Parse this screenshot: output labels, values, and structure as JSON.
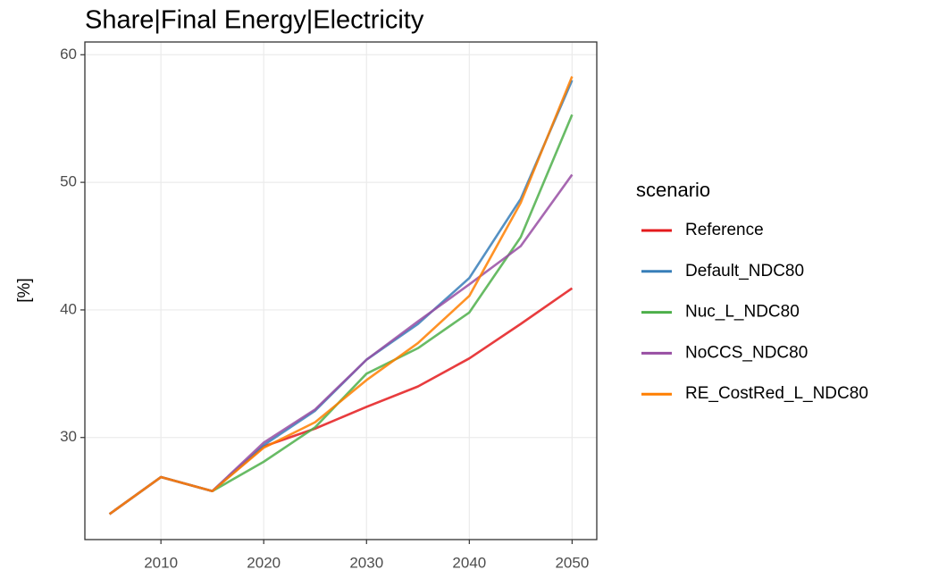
{
  "chart_data": {
    "type": "line",
    "title": "Share|Final Energy|Electricity",
    "y_label": "[%]",
    "legend_title": "scenario",
    "x": [
      2005,
      2010,
      2015,
      2020,
      2025,
      2030,
      2035,
      2040,
      2045,
      2050
    ],
    "series": [
      {
        "name": "Reference",
        "color": "#e41a1c",
        "values": [
          24,
          26.9,
          25.8,
          29.3,
          30.7,
          32.4,
          34,
          36.2,
          38.9,
          41.7
        ]
      },
      {
        "name": "Default_NDC80",
        "color": "#377eb8",
        "values": [
          24,
          26.9,
          25.8,
          29.4,
          32.1,
          36.1,
          38.9,
          42.5,
          48.7,
          58.0
        ]
      },
      {
        "name": "Nuc_L_NDC80",
        "color": "#4daf4a",
        "values": [
          24,
          26.9,
          25.8,
          28.1,
          30.8,
          35,
          37,
          39.8,
          45.7,
          55.3
        ]
      },
      {
        "name": "NoCCS_NDC80",
        "color": "#984ea3",
        "values": [
          24,
          26.9,
          25.8,
          29.6,
          32.2,
          36.1,
          39.1,
          42,
          45,
          50.6
        ]
      },
      {
        "name": "RE_CostRed_L_NDC80",
        "color": "#ff7f00",
        "values": [
          24,
          26.9,
          25.8,
          29.2,
          31.2,
          34.5,
          37.4,
          41.1,
          48.4,
          58.3
        ]
      }
    ],
    "xlim": [
      2002.6,
      2052.4
    ],
    "xticks": [
      2010,
      2020,
      2030,
      2040,
      2050
    ],
    "ylim": [
      22,
      61
    ],
    "yticks": [
      30,
      40,
      50,
      60
    ],
    "grid": true,
    "legend_position": "right"
  }
}
